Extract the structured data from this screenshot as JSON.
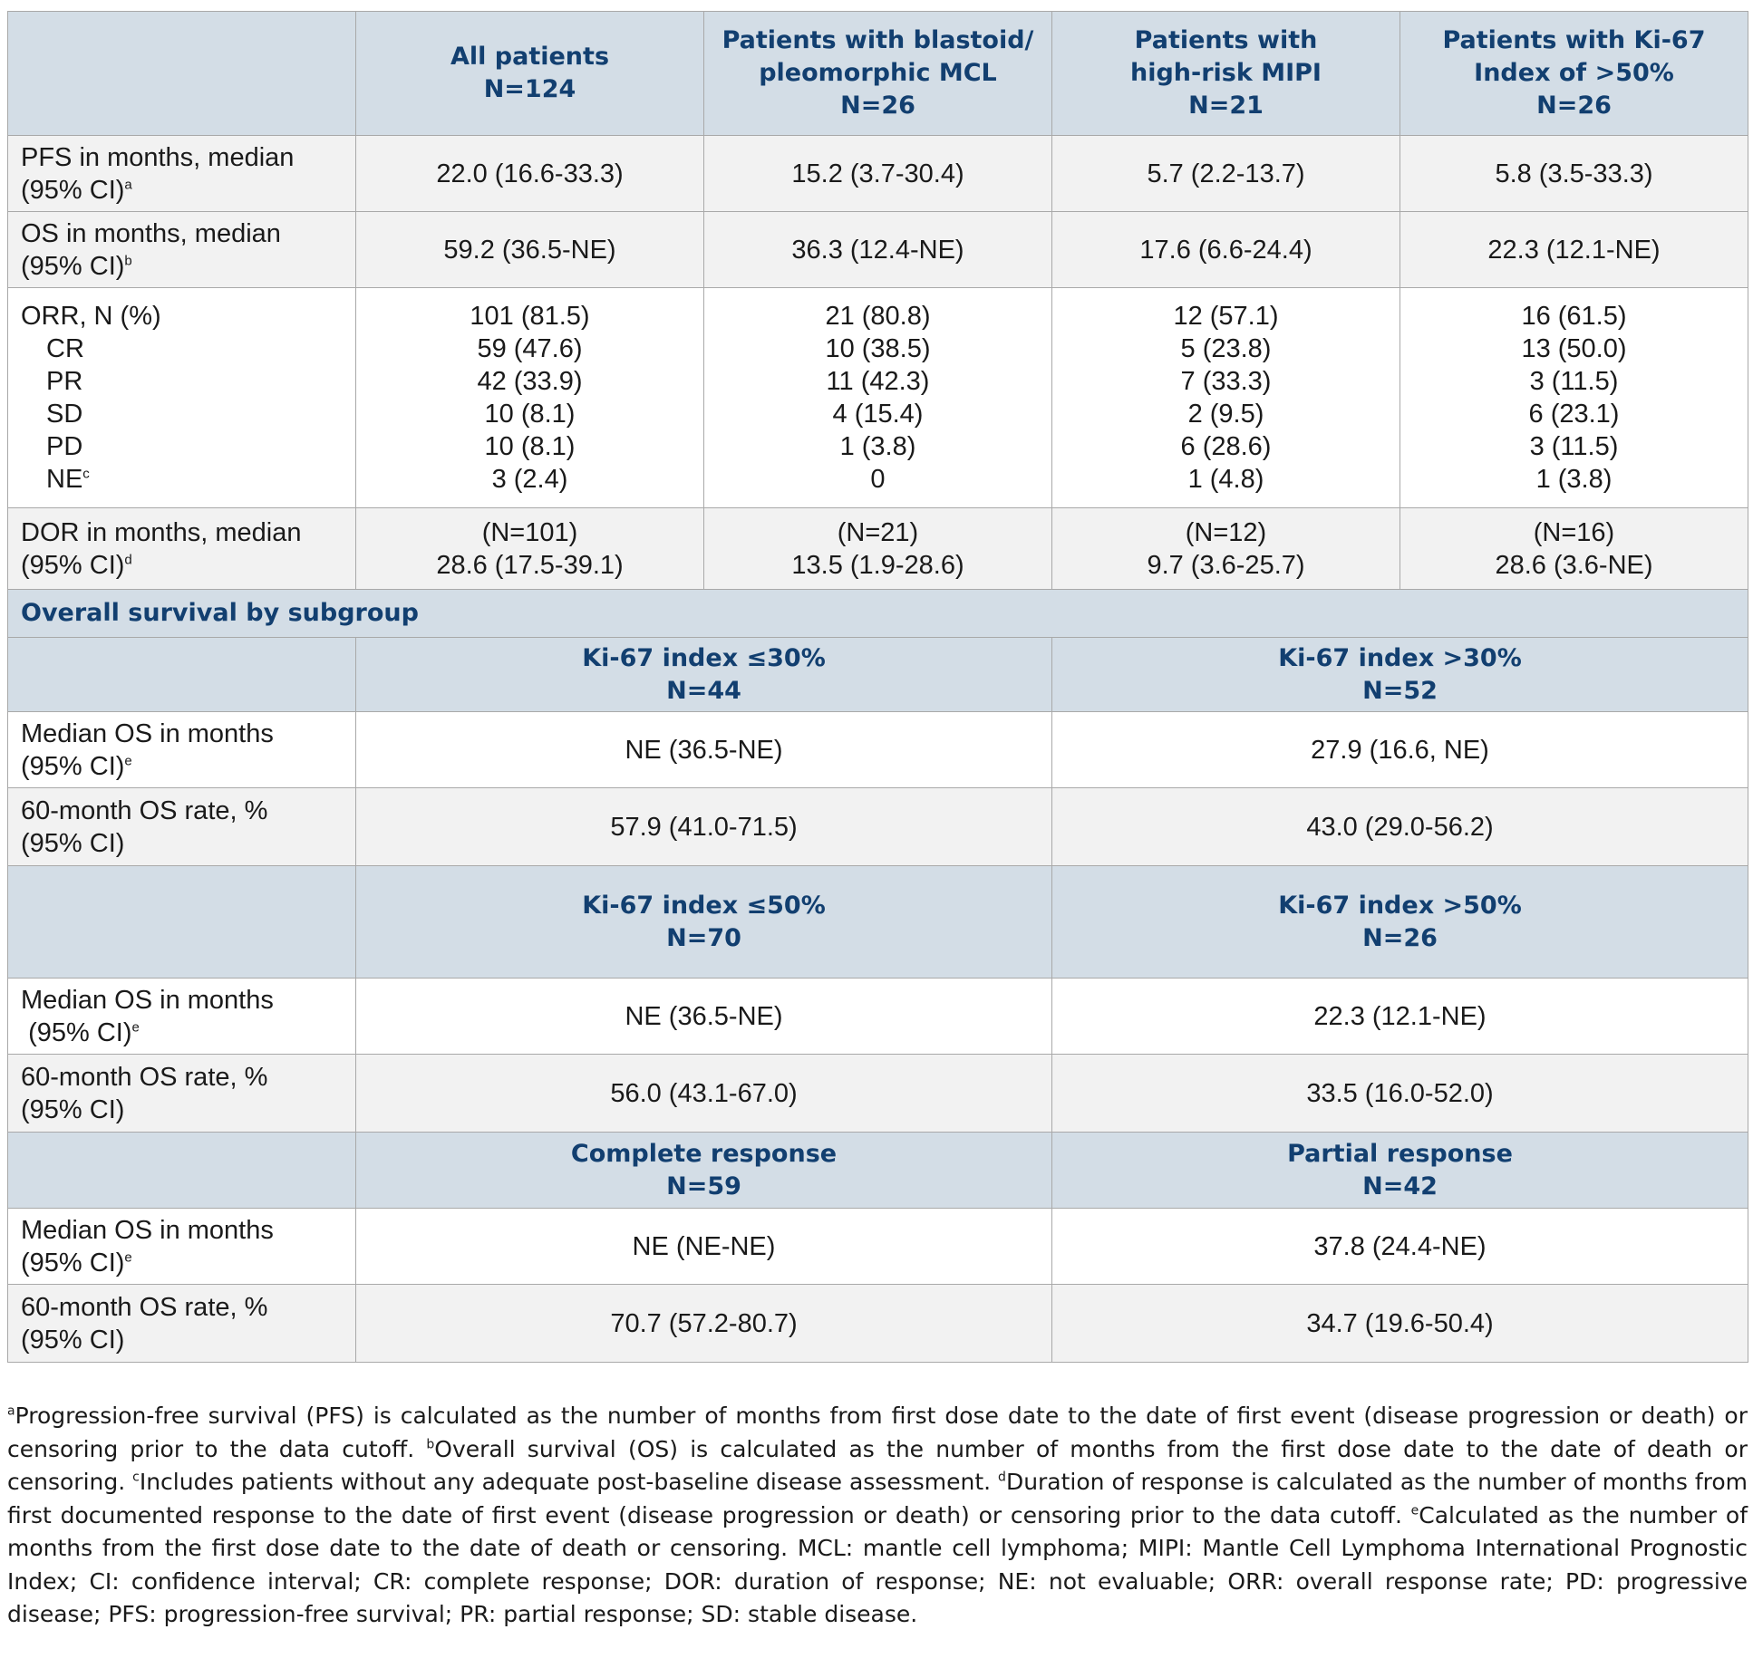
{
  "main_table": {
    "header": [
      {
        "line1": "All patients",
        "line2": "",
        "n": "N=124"
      },
      {
        "line1": "Patients with blastoid/",
        "line2": "pleomorphic MCL",
        "n": "N=26"
      },
      {
        "line1": "Patients with",
        "line2": "high-risk MIPI",
        "n": "N=21"
      },
      {
        "line1": "Patients with Ki-67",
        "line2": "Index of >50%",
        "n": "N=26"
      }
    ],
    "pfs": {
      "label1": "PFS in months, median",
      "label2": "(95% CI)",
      "sup": "a",
      "values": [
        "22.0 (16.6-33.3)",
        "15.2 (3.7-30.4)",
        "5.7 (2.2-13.7)",
        "5.8 (3.5-33.3)"
      ]
    },
    "os": {
      "label1": "OS in months, median",
      "label2": "(95% CI)",
      "sup": "b",
      "values": [
        "59.2 (36.5-NE)",
        "36.3 (12.4-NE)",
        "17.6 (6.6-24.4)",
        "22.3 (12.1-NE)"
      ]
    },
    "orr": {
      "labels": [
        "ORR, N (%)",
        "CR",
        "PR",
        "SD",
        "PD",
        "NE"
      ],
      "ne_sup": "c",
      "values": [
        [
          "101 (81.5)",
          "59 (47.6)",
          "42 (33.9)",
          "10 (8.1)",
          "10 (8.1)",
          "3 (2.4)"
        ],
        [
          "21 (80.8)",
          "10 (38.5)",
          "11 (42.3)",
          "4 (15.4)",
          "1 (3.8)",
          "0"
        ],
        [
          "12 (57.1)",
          "5 (23.8)",
          "7 (33.3)",
          "2 (9.5)",
          "6 (28.6)",
          "1 (4.8)"
        ],
        [
          "16 (61.5)",
          "13 (50.0)",
          "3 (11.5)",
          "6 (23.1)",
          "3 (11.5)",
          "1 (3.8)"
        ]
      ]
    },
    "dor": {
      "label1": "DOR in months, median",
      "label2": "(95% CI)",
      "sup": "d",
      "n": [
        "(N=101)",
        "(N=21)",
        "(N=12)",
        "(N=16)"
      ],
      "values": [
        "28.6 (17.5-39.1)",
        "13.5 (1.9-28.6)",
        "9.7 (3.6-25.7)",
        "28.6 (3.6-NE)"
      ]
    }
  },
  "section_title": "Overall survival by subgroup",
  "subgroups": [
    {
      "left": {
        "title": "Ki-67 index ≤30%",
        "n": "N=44"
      },
      "right": {
        "title": "Ki-67 index >30%",
        "n": "N=52"
      },
      "median_label1": "Median OS in months",
      "median_label2": "(95% CI)",
      "median_sup": "e",
      "median_values": [
        "NE (36.5-NE)",
        "27.9 (16.6, NE)"
      ],
      "rate_label1": "60-month OS rate, %",
      "rate_label2": "(95% CI)",
      "rate_values": [
        "57.9 (41.0-71.5)",
        "43.0 (29.0-56.2)"
      ]
    },
    {
      "left": {
        "title": "Ki-67 index ≤50%",
        "n": "N=70"
      },
      "right": {
        "title": "Ki-67 index >50%",
        "n": "N=26"
      },
      "median_label1": "Median OS in months",
      "median_label2": "(95% CI)",
      "median_sup": "e",
      "median_values": [
        "NE (36.5-NE)",
        "22.3 (12.1-NE)"
      ],
      "rate_label1": "60-month OS rate, %",
      "rate_label2": "(95% CI)",
      "rate_values": [
        "56.0 (43.1-67.0)",
        "33.5 (16.0-52.0)"
      ]
    },
    {
      "left": {
        "title": "Complete response",
        "n": "N=59"
      },
      "right": {
        "title": "Partial response",
        "n": "N=42"
      },
      "median_label1": "Median OS in months",
      "median_label2": "(95% CI)",
      "median_sup": "e",
      "median_values": [
        "NE (NE-NE)",
        "37.8 (24.4-NE)"
      ],
      "rate_label1": "60-month OS rate, %",
      "rate_label2": "(95% CI)",
      "rate_values": [
        "70.7 (57.2-80.7)",
        "34.7 (19.6-50.4)"
      ]
    }
  ],
  "footnotes": [
    {
      "sup": "a",
      "text": "Progression-free survival (PFS) is calculated as the number of months from first dose date to the date of first event (disease progression or death) or censoring prior to the data cutoff. "
    },
    {
      "sup": "b",
      "text": "Overall survival (OS) is calculated as the number of months from the first dose date to the date of death or censoring. "
    },
    {
      "sup": "c",
      "text": "Includes patients without any adequate post-baseline disease assessment. "
    },
    {
      "sup": "d",
      "text": "Duration of response is calculated as the number of months from first documented response to the date of first event (disease progression or death) or censoring prior to the data cutoff. "
    },
    {
      "sup": "e",
      "text": "Calculated as the number of months from the first dose date to the date of death or censoring. MCL: mantle cell lymphoma; MIPI: Mantle Cell Lymphoma International Prognostic Index; CI: confidence interval; CR: complete response; DOR: duration of response; NE: not evaluable; ORR: overall response rate; PD: progressive disease; PFS: progression-free survival; PR: partial response; SD: stable disease."
    }
  ]
}
